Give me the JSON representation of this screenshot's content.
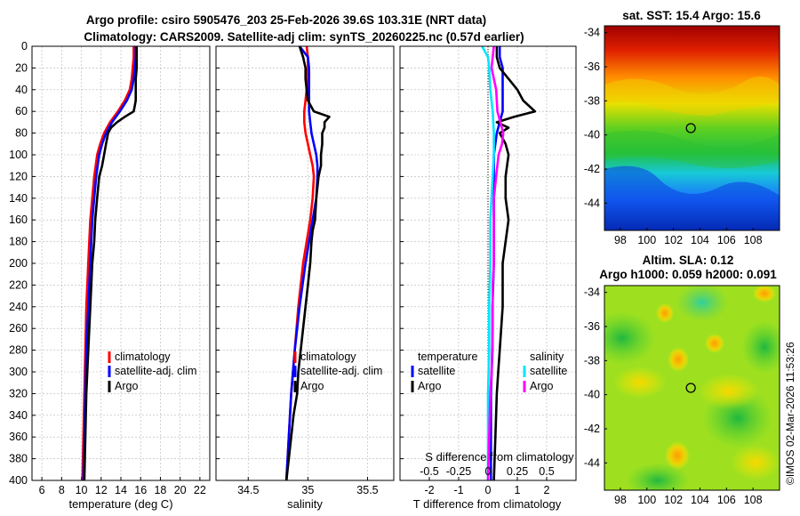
{
  "header": {
    "title_line1": "Argo profile: csiro 5905476_203 25-Feb-2026 39.6S 103.31E (NRT data)",
    "title_line2": "Climatology: CARS2009. Satellite-adj clim: synTS_20260225.nc (0.57d earlier)"
  },
  "colors": {
    "climatology": "#ff0000",
    "satellite_clim": "#0000ff",
    "argo": "#000000",
    "satellite_s": "#00e5ff",
    "argo_s": "#ff00ff",
    "grid": "#b4b4b4"
  },
  "chart_data": [
    {
      "id": "temperature",
      "type": "line",
      "xlabel": "temperature (deg C)",
      "ylabel": "",
      "xlim": [
        5,
        23
      ],
      "ylim": [
        400,
        0
      ],
      "xticks": [
        6,
        8,
        10,
        12,
        14,
        16,
        18,
        20,
        22
      ],
      "yticks": [
        0,
        20,
        40,
        60,
        80,
        100,
        120,
        140,
        160,
        180,
        200,
        220,
        240,
        260,
        280,
        300,
        320,
        340,
        360,
        380,
        400
      ],
      "grid": true,
      "legend": {
        "position": "bottom-right",
        "entries": [
          "climatology",
          "satellite-adj. clim",
          "Argo"
        ]
      },
      "series": [
        {
          "name": "climatology",
          "color_key": "climatology",
          "depth": [
            0,
            10,
            20,
            30,
            40,
            50,
            60,
            70,
            80,
            90,
            100,
            120,
            140,
            160,
            180,
            200,
            240,
            280,
            320,
            360,
            400
          ],
          "values": [
            15.3,
            15.3,
            15.2,
            15.1,
            14.9,
            14.4,
            13.7,
            12.9,
            12.3,
            11.9,
            11.6,
            11.3,
            11.1,
            10.9,
            10.8,
            10.7,
            10.5,
            10.4,
            10.3,
            10.2,
            10.1
          ]
        },
        {
          "name": "satellite-adj. clim",
          "color_key": "satellite_clim",
          "depth": [
            0,
            10,
            20,
            30,
            40,
            50,
            60,
            70,
            80,
            90,
            100,
            120,
            140,
            160,
            180,
            200,
            240,
            280,
            320,
            360,
            400
          ],
          "values": [
            15.5,
            15.5,
            15.4,
            15.3,
            15.1,
            14.6,
            13.9,
            13.1,
            12.5,
            12.1,
            11.8,
            11.5,
            11.3,
            11.1,
            11.0,
            10.9,
            10.7,
            10.5,
            10.4,
            10.3,
            10.2
          ]
        },
        {
          "name": "Argo",
          "color_key": "argo",
          "depth": [
            0,
            10,
            20,
            30,
            40,
            50,
            55,
            60,
            65,
            70,
            75,
            80,
            90,
            100,
            110,
            120,
            140,
            160,
            180,
            200,
            240,
            280,
            320,
            360,
            400
          ],
          "values": [
            15.6,
            15.6,
            15.6,
            15.5,
            15.5,
            15.5,
            15.4,
            15.3,
            14.4,
            13.6,
            13.0,
            12.7,
            12.5,
            12.3,
            12.1,
            11.8,
            11.6,
            11.4,
            11.3,
            11.1,
            10.9,
            10.7,
            10.5,
            10.4,
            10.3
          ]
        }
      ]
    },
    {
      "id": "salinity",
      "type": "line",
      "xlabel": "salinity",
      "xlim": [
        34.23,
        35.72
      ],
      "ylim": [
        400,
        0
      ],
      "xticks": [
        34.5,
        35,
        35.5
      ],
      "xticklabels": [
        "34.5",
        "35",
        "35.5"
      ],
      "grid": true,
      "legend": {
        "position": "bottom-right",
        "entries": [
          "climatology",
          "satellite-adj. clim",
          "Argo"
        ]
      },
      "series": [
        {
          "name": "climatology",
          "color_key": "climatology",
          "depth": [
            0,
            10,
            20,
            30,
            40,
            50,
            60,
            70,
            80,
            90,
            100,
            110,
            120,
            140,
            160,
            180,
            200,
            240,
            280,
            320,
            360,
            400
          ],
          "values": [
            34.99,
            35.0,
            35.0,
            35.0,
            34.99,
            34.98,
            34.97,
            34.97,
            34.98,
            35.0,
            35.02,
            35.04,
            35.05,
            35.04,
            35.02,
            34.99,
            34.96,
            34.92,
            34.89,
            34.86,
            34.84,
            34.82
          ]
        },
        {
          "name": "satellite-adj. clim",
          "color_key": "satellite_clim",
          "depth": [
            0,
            10,
            20,
            30,
            40,
            50,
            60,
            70,
            80,
            90,
            100,
            110,
            120,
            140,
            160,
            180,
            200,
            240,
            280,
            320,
            360,
            400
          ],
          "values": [
            34.93,
            35.0,
            35.01,
            35.01,
            35.01,
            35.01,
            35.01,
            35.02,
            35.03,
            35.05,
            35.07,
            35.08,
            35.08,
            35.07,
            35.04,
            35.01,
            34.98,
            34.93,
            34.89,
            34.86,
            34.84,
            34.82
          ]
        },
        {
          "name": "Argo",
          "color_key": "argo",
          "depth": [
            0,
            10,
            20,
            30,
            40,
            50,
            60,
            65,
            70,
            75,
            80,
            90,
            100,
            110,
            120,
            130,
            140,
            160,
            170,
            180,
            200,
            220,
            240,
            260,
            280,
            300,
            320,
            340,
            360,
            380,
            400
          ],
          "values": [
            34.93,
            34.96,
            34.98,
            34.98,
            34.99,
            35.0,
            35.05,
            35.18,
            35.14,
            35.14,
            35.12,
            35.12,
            35.11,
            35.11,
            35.09,
            35.08,
            35.07,
            35.06,
            35.04,
            35.03,
            35.02,
            35.0,
            34.98,
            34.96,
            34.94,
            34.92,
            34.91,
            34.88,
            34.86,
            34.84,
            34.82
          ]
        }
      ]
    },
    {
      "id": "differences",
      "type": "line",
      "xlabel": "T difference from climatology",
      "xlabel_top": "S difference from climatology",
      "xlim": [
        -3,
        3
      ],
      "ylim": [
        400,
        0
      ],
      "xticks": [
        -2,
        -1,
        0,
        1,
        2
      ],
      "xticklabels": [
        "-2",
        "-1",
        "0",
        "1",
        "2"
      ],
      "sticks": [
        -0.5,
        -0.25,
        0,
        0.25,
        0.5
      ],
      "sticklabels": [
        "-0.5",
        "-0.25",
        "0",
        "0.25",
        "0.5"
      ],
      "grid": true,
      "legend": {
        "position": "bottom",
        "temperature_title": "temperature",
        "salinity_title": "salinity",
        "satellite_label": "satellite",
        "argo_label": "Argo"
      },
      "series": [
        {
          "name": "T satellite",
          "color_key": "satellite_clim",
          "units": "degC",
          "depth": [
            0,
            10,
            20,
            40,
            60,
            80,
            100,
            140,
            200,
            240,
            280,
            320,
            360,
            400
          ],
          "values": [
            0.4,
            0.4,
            0.5,
            0.5,
            0.5,
            0.3,
            0.2,
            0.2,
            0.2,
            0.15,
            0.15,
            0.1,
            0.1,
            0.1
          ]
        },
        {
          "name": "T Argo",
          "color_key": "argo",
          "units": "degC",
          "depth": [
            0,
            10,
            20,
            30,
            40,
            50,
            60,
            65,
            70,
            75,
            80,
            90,
            100,
            120,
            140,
            160,
            180,
            200,
            240,
            280,
            300,
            320,
            360,
            400
          ],
          "values": [
            0.3,
            0.3,
            0.4,
            0.7,
            1.0,
            1.2,
            1.6,
            0.9,
            0.3,
            0.7,
            0.4,
            0.6,
            0.7,
            0.6,
            0.6,
            0.7,
            0.6,
            0.5,
            0.5,
            0.4,
            0.35,
            0.3,
            0.25,
            0.2
          ]
        },
        {
          "name": "S satellite",
          "color_key": "satellite_s",
          "units": "psu",
          "depth": [
            0,
            10,
            20,
            40,
            60,
            80,
            100,
            120,
            160,
            200,
            240,
            280,
            320,
            360,
            400
          ],
          "values": [
            -0.05,
            0.0,
            0.01,
            0.02,
            0.04,
            0.05,
            0.05,
            0.04,
            0.02,
            0.02,
            0.01,
            0.01,
            0.0,
            0.0,
            0.0
          ]
        },
        {
          "name": "S Argo",
          "color_key": "argo_s",
          "units": "psu",
          "depth": [
            0,
            20,
            40,
            60,
            80,
            90,
            100,
            120,
            140,
            160,
            180,
            200,
            220,
            260,
            300,
            320,
            360,
            400
          ],
          "values": [
            0.05,
            0.03,
            0.07,
            0.08,
            0.13,
            0.12,
            0.09,
            0.07,
            0.05,
            0.05,
            0.05,
            0.05,
            0.04,
            0.04,
            0.03,
            0.02,
            0.01,
            0.0
          ]
        }
      ]
    },
    {
      "id": "sst_map",
      "type": "heatmap",
      "title": "sat. SST: 15.4 Argo: 15.6",
      "xlim": [
        96.8,
        110
      ],
      "ylim": [
        -45.6,
        -33.6
      ],
      "xticks": [
        98,
        100,
        102,
        104,
        106,
        108
      ],
      "yticks": [
        -34,
        -36,
        -38,
        -40,
        -42,
        -44
      ],
      "marker": {
        "lon": 103.31,
        "lat": -39.6
      },
      "color_scale": "jet (warm north, cool south)"
    },
    {
      "id": "sla_map",
      "type": "heatmap",
      "title_line1": "Altim. SLA: 0.12",
      "title_line2": "Argo h1000: 0.059 h2000: 0.091",
      "xlim": [
        96.8,
        110
      ],
      "ylim": [
        -45.6,
        -33.6
      ],
      "xticks": [
        98,
        100,
        102,
        104,
        106,
        108
      ],
      "yticks": [
        -34,
        -36,
        -38,
        -40,
        -42,
        -44
      ],
      "marker": {
        "lon": 103.31,
        "lat": -39.6
      },
      "color_scale": "jet (mostly green-yellow)"
    }
  ],
  "credit": "©IMOS 02-Mar-2026 11:53:26"
}
